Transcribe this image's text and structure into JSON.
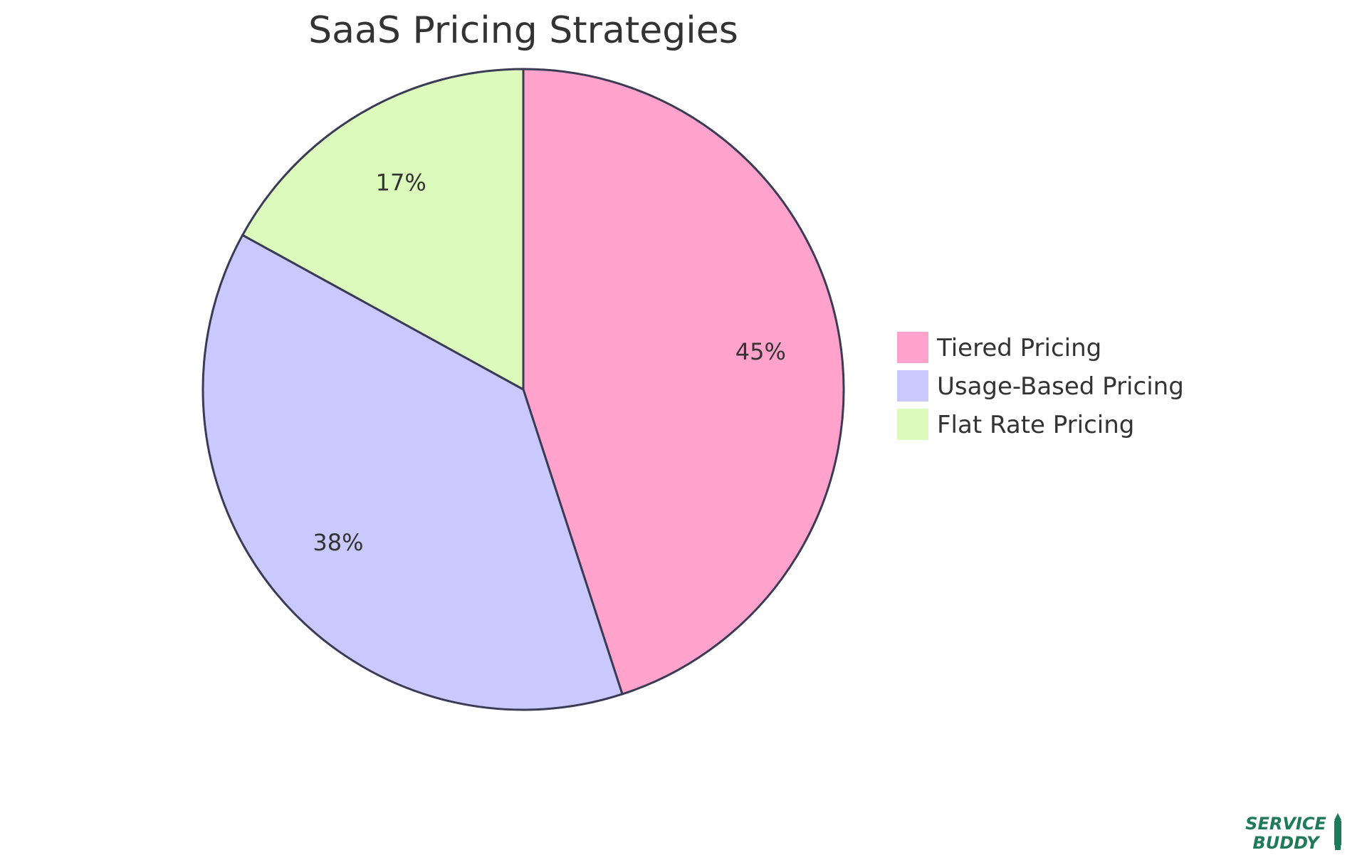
{
  "chart_data": {
    "type": "pie",
    "title": "SaaS Pricing Strategies",
    "legend_position": "right",
    "slices": [
      {
        "label": "Tiered Pricing",
        "value": 45,
        "display": "45%",
        "color": "#FFA3CD"
      },
      {
        "label": "Usage-Based Pricing",
        "value": 38,
        "display": "38%",
        "color": "#C9C9FF"
      },
      {
        "label": "Flat Rate Pricing",
        "value": 17,
        "display": "17%",
        "color": "#DBFABB"
      }
    ],
    "stroke_color": "#3B3B55"
  },
  "brand": {
    "line1": "SERVICE",
    "line2": "BUDDY",
    "color": "#1F7A5A"
  }
}
